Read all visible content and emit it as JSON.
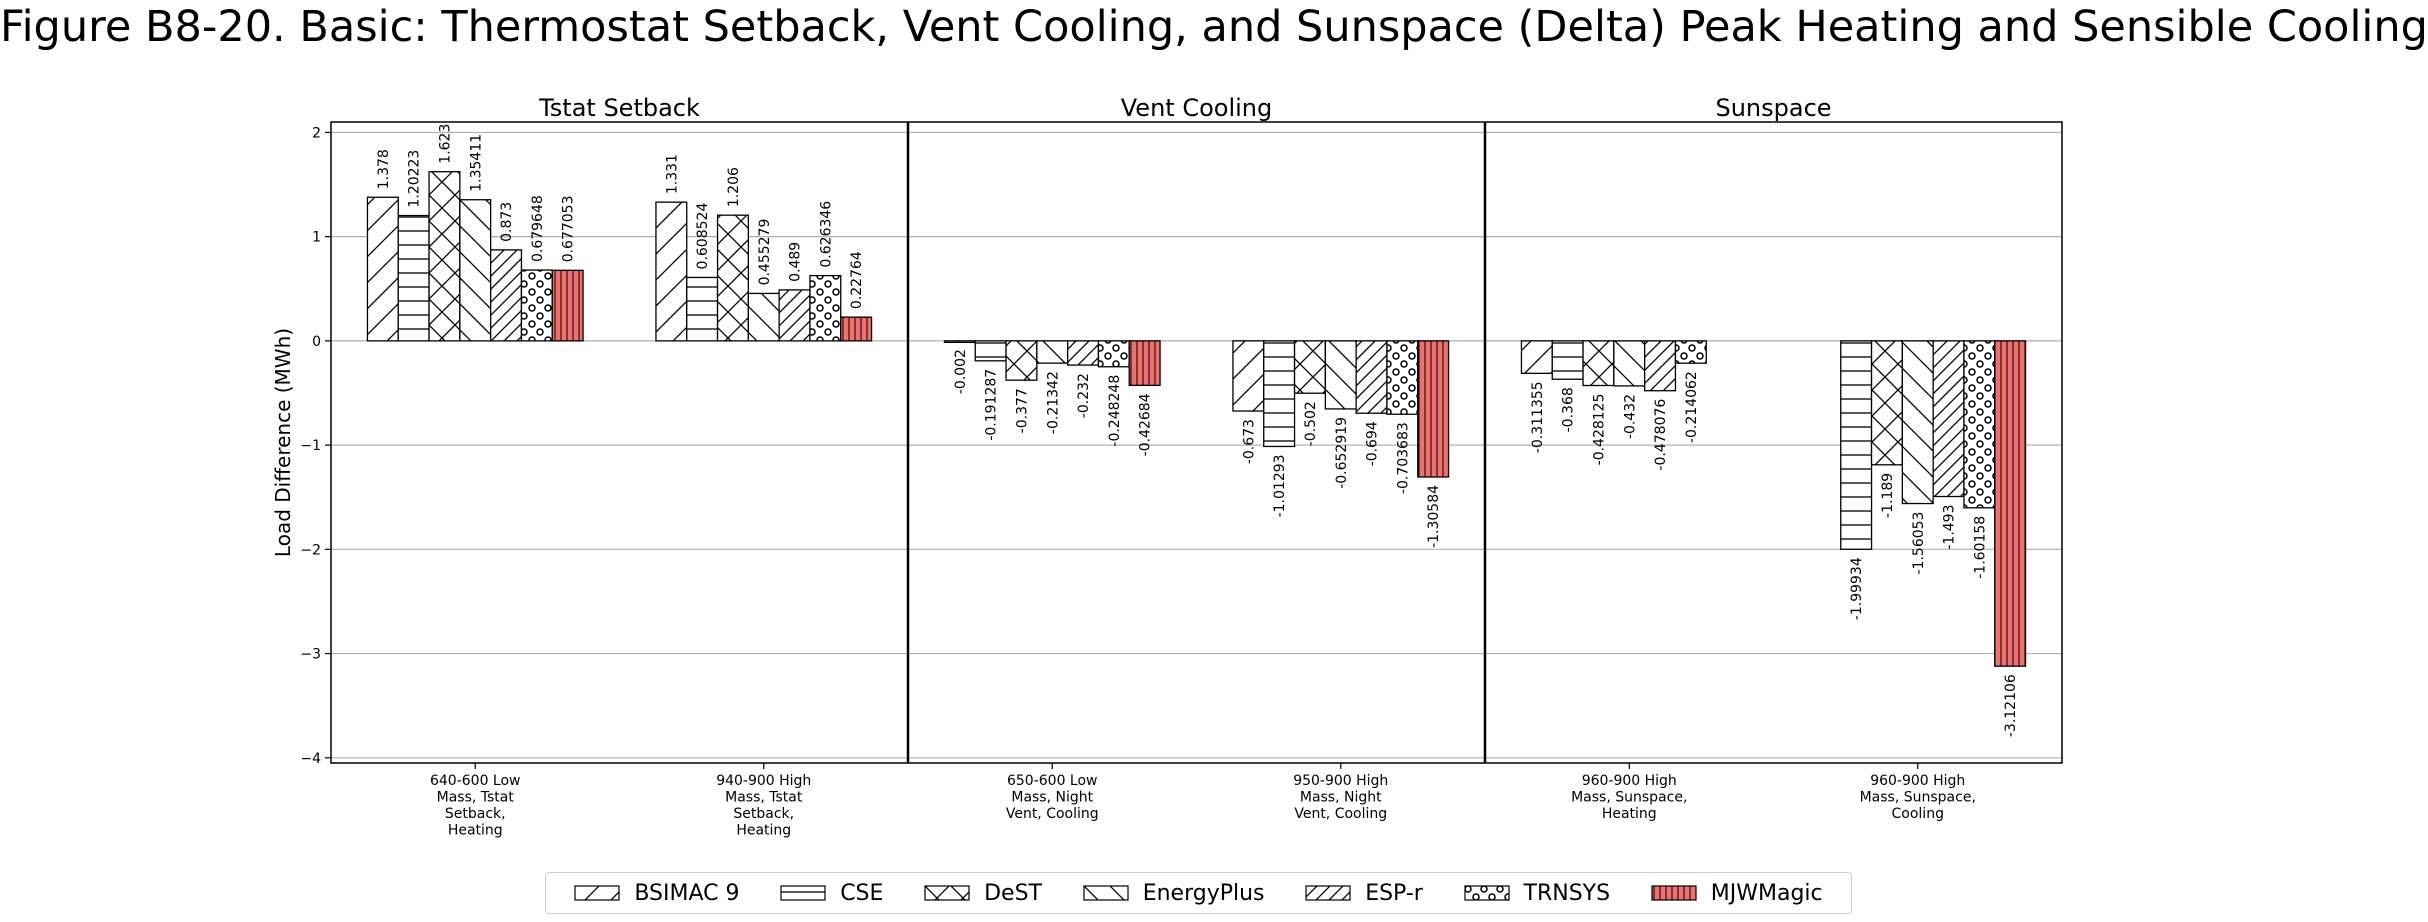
{
  "title": "Figure B8-20. Basic: Thermostat Setback, Vent Cooling, and Sunspace (Delta) Peak Heating and Sensible Cooling",
  "chart_data": {
    "type": "bar",
    "ylabel": "Load Difference (MWh)",
    "ylim": [
      -4.05,
      2.1
    ],
    "yticks": [
      2,
      1,
      0,
      -1,
      -2,
      -3,
      -4
    ],
    "grid": "horizontal",
    "legend_position": "bottom-center",
    "panels": [
      {
        "title": "Tstat Setback",
        "categories": [
          "640-600 Low Mass, Tstat Setback, Heating",
          "940-900 High Mass, Tstat Setback, Heating"
        ],
        "category_lines": [
          [
            "640-600 Low",
            "Mass, Tstat",
            "Setback,",
            "Heating"
          ],
          [
            "940-900 High",
            "Mass, Tstat",
            "Setback,",
            "Heating"
          ]
        ],
        "series": [
          {
            "name": "BSIMAC 9",
            "values": [
              1.378,
              1.331
            ],
            "labels": [
              "1.378",
              "1.331"
            ]
          },
          {
            "name": "CSE",
            "values": [
              1.20223,
              0.608524
            ],
            "labels": [
              "1.20223",
              "0.608524"
            ]
          },
          {
            "name": "DeST",
            "values": [
              1.623,
              1.206
            ],
            "labels": [
              "1.623",
              "1.206"
            ]
          },
          {
            "name": "EnergyPlus",
            "values": [
              1.35411,
              0.455279
            ],
            "labels": [
              "1.35411",
              "0.455279"
            ]
          },
          {
            "name": "ESP-r",
            "values": [
              0.873,
              0.489
            ],
            "labels": [
              "0.873",
              "0.489"
            ]
          },
          {
            "name": "TRNSYS",
            "values": [
              0.679648,
              0.626346
            ],
            "labels": [
              "0.679648",
              "0.626346"
            ]
          },
          {
            "name": "MJWMagic",
            "values": [
              0.677053,
              0.22764
            ],
            "labels": [
              "0.677053",
              "0.22764"
            ]
          }
        ]
      },
      {
        "title": "Vent Cooling",
        "categories": [
          "650-600 Low Mass, Night Vent, Cooling",
          "950-900 High Mass, Night Vent, Cooling"
        ],
        "category_lines": [
          [
            "650-600 Low",
            "Mass, Night",
            "Vent, Cooling"
          ],
          [
            "950-900 High",
            "Mass, Night",
            "Vent, Cooling"
          ]
        ],
        "series": [
          {
            "name": "BSIMAC 9",
            "values": [
              -0.002,
              -0.673
            ],
            "labels": [
              "-0.002",
              "-0.673"
            ]
          },
          {
            "name": "CSE",
            "values": [
              -0.191287,
              -1.01293
            ],
            "labels": [
              "-0.191287",
              "-1.01293"
            ]
          },
          {
            "name": "DeST",
            "values": [
              -0.377,
              -0.502
            ],
            "labels": [
              "-0.377",
              "-0.502"
            ]
          },
          {
            "name": "EnergyPlus",
            "values": [
              -0.21342,
              -0.652919
            ],
            "labels": [
              "-0.21342",
              "-0.652919"
            ]
          },
          {
            "name": "ESP-r",
            "values": [
              -0.232,
              -0.694
            ],
            "labels": [
              "-0.232",
              "-0.694"
            ]
          },
          {
            "name": "TRNSYS",
            "values": [
              -0.248248,
              -0.703683
            ],
            "labels": [
              "-0.248248",
              "-0.703683"
            ]
          },
          {
            "name": "MJWMagic",
            "values": [
              -0.42684,
              -1.30584
            ],
            "labels": [
              "-0.42684",
              "-1.30584"
            ]
          }
        ]
      },
      {
        "title": "Sunspace",
        "categories": [
          "960-900 High Mass, Sunspace, Heating",
          "960-900 High Mass, Sunspace, Cooling"
        ],
        "category_lines": [
          [
            "960-900 High",
            "Mass, Sunspace,",
            "Heating"
          ],
          [
            "960-900 High",
            "Mass, Sunspace,",
            "Cooling"
          ]
        ],
        "series": [
          {
            "name": "BSIMAC 9",
            "values": [
              -0.311355,
              null
            ],
            "labels": [
              "-0.311355",
              null
            ]
          },
          {
            "name": "CSE",
            "values": [
              -0.368,
              -1.99934
            ],
            "labels": [
              "-0.368",
              "-1.99934"
            ]
          },
          {
            "name": "DeST",
            "values": [
              -0.428125,
              -1.189
            ],
            "labels": [
              "-0.428125",
              "-1.189"
            ]
          },
          {
            "name": "EnergyPlus",
            "values": [
              -0.432,
              -1.56053
            ],
            "labels": [
              "-0.432",
              "-1.56053"
            ]
          },
          {
            "name": "ESP-r",
            "values": [
              -0.478076,
              -1.493
            ],
            "labels": [
              "-0.478076",
              "-1.493"
            ]
          },
          {
            "name": "TRNSYS",
            "values": [
              -0.214062,
              -1.60158
            ],
            "labels": [
              "-0.214062",
              "-1.60158"
            ]
          },
          {
            "name": "MJWMagic",
            "values": [
              null,
              -3.12106
            ],
            "labels": [
              null,
              "-3.12106"
            ]
          }
        ]
      }
    ],
    "legend": [
      {
        "name": "BSIMAC 9",
        "pattern": "diag-up",
        "color": "#ffffff"
      },
      {
        "name": "CSE",
        "pattern": "horizontal",
        "color": "#ffffff"
      },
      {
        "name": "DeST",
        "pattern": "cross",
        "color": "#ffffff"
      },
      {
        "name": "EnergyPlus",
        "pattern": "diag-down",
        "color": "#ffffff"
      },
      {
        "name": "ESP-r",
        "pattern": "diag-up-dense",
        "color": "#ffffff"
      },
      {
        "name": "TRNSYS",
        "pattern": "dots",
        "color": "#ffffff"
      },
      {
        "name": "MJWMagic",
        "pattern": "vertical",
        "color": "#f07070"
      }
    ]
  }
}
